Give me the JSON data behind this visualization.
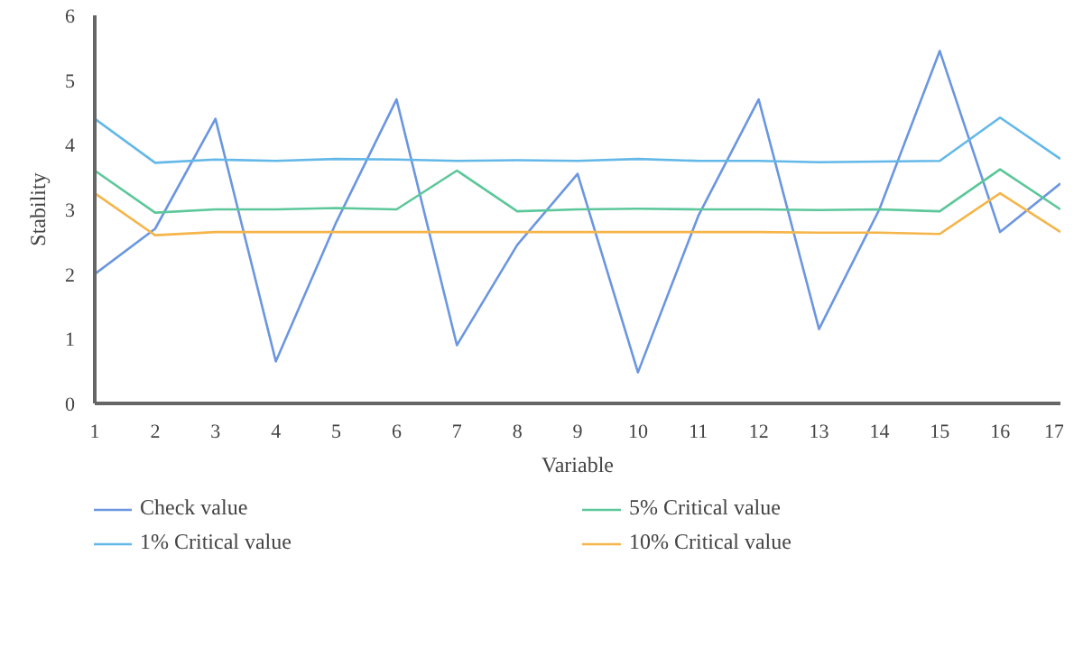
{
  "chart_data": {
    "type": "line",
    "xlabel": "Variable",
    "ylabel": "Stability",
    "x": [
      1,
      2,
      3,
      4,
      5,
      6,
      7,
      8,
      9,
      10,
      11,
      12,
      13,
      14,
      15,
      16,
      17
    ],
    "xlim": [
      1,
      17
    ],
    "xticks": [
      1,
      2,
      3,
      4,
      5,
      6,
      7,
      8,
      9,
      10,
      11,
      12,
      13,
      14,
      15,
      16,
      17
    ],
    "ylim": [
      0,
      6
    ],
    "yticks": [
      0,
      1,
      2,
      3,
      4,
      5,
      6
    ],
    "grid": false,
    "legend": "bottom",
    "marker": "none",
    "line_style": "solid",
    "series": [
      {
        "name": "Check value",
        "color": "#6b96e0",
        "values": [
          2.0,
          2.7,
          4.4,
          0.65,
          2.8,
          4.7,
          0.9,
          2.45,
          3.55,
          0.48,
          2.9,
          4.7,
          1.15,
          3.0,
          5.45,
          2.65,
          3.4
        ]
      },
      {
        "name": "1% Critical value",
        "color": "#63b8e8",
        "values": [
          4.4,
          3.72,
          3.77,
          3.75,
          3.78,
          3.77,
          3.75,
          3.76,
          3.75,
          3.78,
          3.75,
          3.75,
          3.73,
          3.74,
          3.75,
          4.42,
          3.78
        ]
      },
      {
        "name": "5% Critical value",
        "color": "#5cc79a",
        "values": [
          3.6,
          2.95,
          3.0,
          3.0,
          3.02,
          3.0,
          3.6,
          2.97,
          3.0,
          3.01,
          3.0,
          3.0,
          2.99,
          3.0,
          2.97,
          3.62,
          3.0
        ]
      },
      {
        "name": "10% Critical value",
        "color": "#f5b54a",
        "values": [
          3.25,
          2.6,
          2.65,
          2.65,
          2.65,
          2.65,
          2.65,
          2.65,
          2.65,
          2.65,
          2.65,
          2.65,
          2.64,
          2.64,
          2.62,
          3.25,
          2.65
        ]
      }
    ]
  }
}
